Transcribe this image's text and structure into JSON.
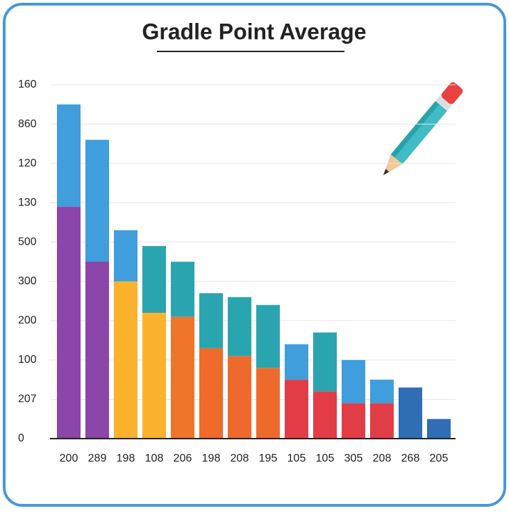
{
  "chart_data": {
    "type": "stacked_bar",
    "title": "Gradle Point Average",
    "categories": [
      "200",
      "289",
      "198",
      "108",
      "206",
      "198",
      "208",
      "195",
      "105",
      "105",
      "305",
      "208",
      "268",
      "205"
    ],
    "series": [
      {
        "values": [
          5.9,
          4.5,
          4.0,
          3.2,
          3.1,
          2.3,
          2.1,
          1.8,
          1.5,
          1.2,
          0.9,
          0.9,
          1.3,
          0.5
        ],
        "colors": [
          "#8c45a8",
          "#8c45a8",
          "#fbb22c",
          "#fbb22c",
          "#f0742a",
          "#ef6a2b",
          "#ee6a2c",
          "#ee6a2c",
          "#e23d47",
          "#e23d47",
          "#e23d47",
          "#e23d47",
          "#2f6db4",
          "#2f6db4"
        ]
      },
      {
        "values": [
          2.6,
          3.1,
          1.3,
          1.7,
          1.4,
          1.4,
          1.5,
          1.6,
          0.9,
          1.5,
          1.1,
          0.6,
          null,
          null
        ],
        "colors": [
          "#3f9edb",
          "#3f9edb",
          "#3f9edb",
          "#2aa5b0",
          "#2aa5b0",
          "#2aa5b0",
          "#2aa5b0",
          "#2aa5b0",
          "#3f9edb",
          "#2aa5b0",
          "#3f9edb",
          "#3f9edb",
          null,
          null
        ]
      }
    ],
    "ylim": [
      0,
      9
    ],
    "yticks": [
      {
        "value": 0,
        "label": "0"
      },
      {
        "value": 1,
        "label": "207"
      },
      {
        "value": 2,
        "label": "100"
      },
      {
        "value": 3,
        "label": "200"
      },
      {
        "value": 4,
        "label": "300"
      },
      {
        "value": 5,
        "label": "500"
      },
      {
        "value": 6,
        "label": "130"
      },
      {
        "value": 7,
        "label": "120"
      },
      {
        "value": 8,
        "label": "860"
      },
      {
        "value": 9,
        "label": "160"
      }
    ],
    "grid": true
  }
}
